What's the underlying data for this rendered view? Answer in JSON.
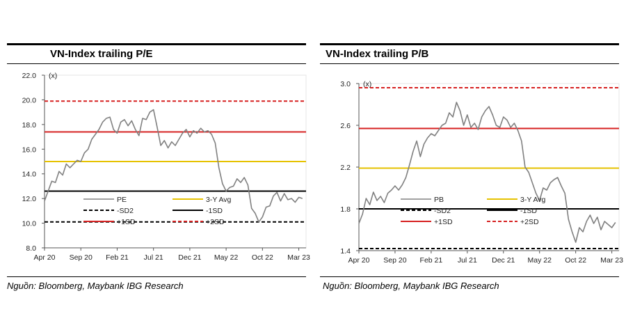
{
  "chart_data": [
    {
      "type": "line",
      "title": "VN-Index trailing P/E",
      "unit_label": "(x)",
      "source": "Nguồn: Bloomberg, Maybank IBG Research",
      "ylim": [
        8.0,
        22.0
      ],
      "yticks": [
        "22.0",
        "20.0",
        "18.0",
        "16.0",
        "14.0",
        "12.0",
        "10.0",
        "8.0"
      ],
      "ytick_values": [
        22,
        20,
        18,
        16,
        14,
        12,
        10,
        8
      ],
      "xlim": [
        0,
        36
      ],
      "xticks": [
        "Apr 20",
        "Sep 20",
        "Feb 21",
        "Jul 21",
        "Dec 21",
        "May 22",
        "Oct 22",
        "Mar 23"
      ],
      "xtick_values": [
        0,
        5,
        10,
        15,
        20,
        25,
        30,
        35
      ],
      "grid": false,
      "legend_position": "bottom",
      "series": [
        {
          "name": "PE",
          "style": "line",
          "color": "#808080",
          "x": [
            0,
            0.5,
            1,
            1.5,
            2,
            2.5,
            3,
            3.5,
            4,
            4.5,
            5,
            5.5,
            6,
            6.5,
            7,
            7.5,
            8,
            8.5,
            9,
            9.5,
            10,
            10.5,
            11,
            11.5,
            12,
            12.5,
            13,
            13.5,
            14,
            14.5,
            15,
            15.5,
            16,
            16.5,
            17,
            17.5,
            18,
            18.5,
            19,
            19.5,
            20,
            20.5,
            21,
            21.5,
            22,
            22.5,
            23,
            23.5,
            24,
            24.5,
            25,
            25.5,
            26,
            26.5,
            27,
            27.5,
            28,
            28.5,
            29,
            29.5,
            30,
            30.5,
            31,
            31.5,
            32,
            32.5,
            33,
            33.5,
            34,
            34.5,
            35,
            35.5
          ],
          "values": [
            11.8,
            12.6,
            13.4,
            13.3,
            14.2,
            13.9,
            14.8,
            14.5,
            14.8,
            15.1,
            15.0,
            15.7,
            16.0,
            16.8,
            17.2,
            17.6,
            18.2,
            18.5,
            18.6,
            17.6,
            17.3,
            18.2,
            18.4,
            17.9,
            18.3,
            17.6,
            17.1,
            18.5,
            18.4,
            19.0,
            19.2,
            17.8,
            16.3,
            16.7,
            16.1,
            16.6,
            16.3,
            16.8,
            17.3,
            17.6,
            17.0,
            17.5,
            17.3,
            17.7,
            17.4,
            17.5,
            17.2,
            16.5,
            14.5,
            13.2,
            12.6,
            12.9,
            13.0,
            13.6,
            13.3,
            13.7,
            13.1,
            11.2,
            10.8,
            10.1,
            10.5,
            11.3,
            11.4,
            12.2,
            12.5,
            11.8,
            12.4,
            11.9,
            12.0,
            11.7,
            12.1,
            12.0
          ]
        },
        {
          "name": "3-Y Avg",
          "style": "hline",
          "value": 15.0,
          "color": "#e6c200",
          "dash": "solid"
        },
        {
          "name": "-SD2",
          "style": "hline",
          "value": 10.1,
          "color": "#000000",
          "dash": "dashed"
        },
        {
          "name": "-1SD",
          "style": "hline",
          "value": 12.6,
          "color": "#000000",
          "dash": "solid"
        },
        {
          "name": "+1SD",
          "style": "hline",
          "value": 17.4,
          "color": "#d62020",
          "dash": "solid"
        },
        {
          "name": "+2SD",
          "style": "hline",
          "value": 19.9,
          "color": "#d62020",
          "dash": "dashed"
        }
      ]
    },
    {
      "type": "line",
      "title": "VN-Index trailing P/B",
      "unit_label": "(x)",
      "source": "Nguồn: Bloomberg, Maybank IBG Research",
      "ylim": [
        1.4,
        3.0
      ],
      "yticks": [
        "3.0",
        "2.6",
        "2.2",
        "1.8",
        "1.4"
      ],
      "ytick_values": [
        3.0,
        2.6,
        2.2,
        1.8,
        1.4
      ],
      "xlim": [
        0,
        36
      ],
      "xticks": [
        "Apr 20",
        "Sep 20",
        "Feb 21",
        "Jul 21",
        "Dec 21",
        "May 22",
        "Oct 22",
        "Mar 23"
      ],
      "xtick_values": [
        0,
        5,
        10,
        15,
        20,
        25,
        30,
        35
      ],
      "grid": false,
      "legend_position": "bottom",
      "series": [
        {
          "name": "PB",
          "style": "line",
          "color": "#808080",
          "x": [
            0,
            0.5,
            1,
            1.5,
            2,
            2.5,
            3,
            3.5,
            4,
            4.5,
            5,
            5.5,
            6,
            6.5,
            7,
            7.5,
            8,
            8.5,
            9,
            9.5,
            10,
            10.5,
            11,
            11.5,
            12,
            12.5,
            13,
            13.5,
            14,
            14.5,
            15,
            15.5,
            16,
            16.5,
            17,
            17.5,
            18,
            18.5,
            19,
            19.5,
            20,
            20.5,
            21,
            21.5,
            22,
            22.5,
            23,
            23.5,
            24,
            24.5,
            25,
            25.5,
            26,
            26.5,
            27,
            27.5,
            28,
            28.5,
            29,
            29.5,
            30,
            30.5,
            31,
            31.5,
            32,
            32.5,
            33,
            33.5,
            34,
            34.5,
            35,
            35.5
          ],
          "values": [
            1.66,
            1.75,
            1.9,
            1.84,
            1.96,
            1.88,
            1.92,
            1.86,
            1.95,
            1.98,
            2.02,
            1.98,
            2.03,
            2.1,
            2.22,
            2.35,
            2.45,
            2.3,
            2.42,
            2.48,
            2.52,
            2.5,
            2.55,
            2.6,
            2.62,
            2.72,
            2.68,
            2.82,
            2.74,
            2.6,
            2.7,
            2.58,
            2.62,
            2.56,
            2.68,
            2.74,
            2.78,
            2.7,
            2.6,
            2.58,
            2.68,
            2.65,
            2.58,
            2.62,
            2.55,
            2.45,
            2.2,
            2.15,
            2.05,
            1.95,
            1.88,
            2.0,
            1.98,
            2.05,
            2.08,
            2.1,
            2.02,
            1.95,
            1.7,
            1.58,
            1.48,
            1.62,
            1.58,
            1.68,
            1.74,
            1.66,
            1.72,
            1.6,
            1.68,
            1.65,
            1.62,
            1.67
          ]
        },
        {
          "name": "3-Y Avg",
          "style": "hline",
          "value": 2.19,
          "color": "#e6c200",
          "dash": "solid"
        },
        {
          "name": "-SD2",
          "style": "hline",
          "value": 1.42,
          "color": "#000000",
          "dash": "dashed"
        },
        {
          "name": "-1SD",
          "style": "hline",
          "value": 1.8,
          "color": "#000000",
          "dash": "solid"
        },
        {
          "name": "+1SD",
          "style": "hline",
          "value": 2.57,
          "color": "#d62020",
          "dash": "solid"
        },
        {
          "name": "+2SD",
          "style": "hline",
          "value": 2.96,
          "color": "#d62020",
          "dash": "dashed"
        }
      ]
    }
  ]
}
